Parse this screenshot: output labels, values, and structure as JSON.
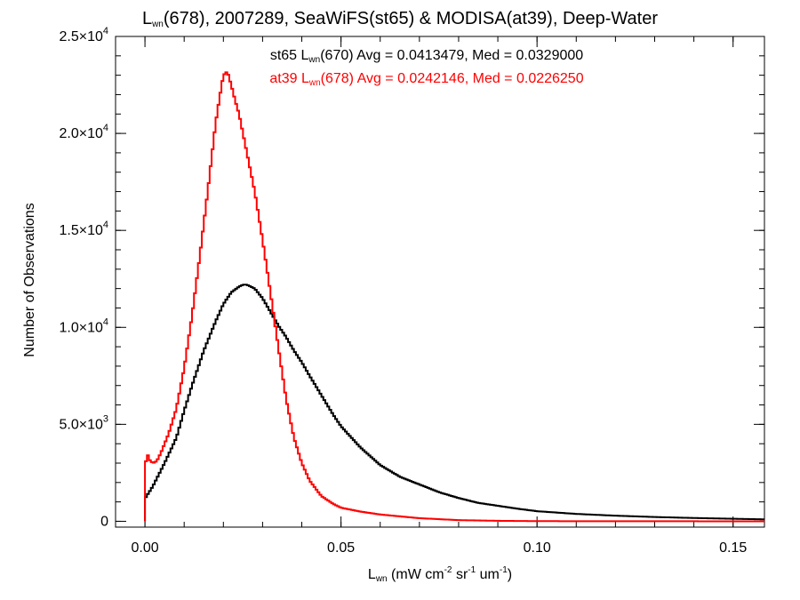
{
  "chart_data": {
    "type": "line",
    "title": {
      "main": "L",
      "sub": "wn",
      "rest": "(678), 2007289, SeaWiFS(st65) & MODISA(at39), Deep-Water"
    },
    "xlabel": {
      "main": "L",
      "sub": "wn",
      "p1": " (mW cm",
      "s1": "-2",
      "p2": " sr",
      "s2": "-1",
      "p3": " um",
      "s3": "-1",
      "p4": ")"
    },
    "ylabel": "Number of Observations",
    "xlim": [
      -0.0075,
      0.158
    ],
    "ylim": [
      -300,
      25000
    ],
    "x_ticks": [
      {
        "value": 0.0,
        "label": "0.00"
      },
      {
        "value": 0.05,
        "label": "0.05"
      },
      {
        "value": 0.1,
        "label": "0.10"
      },
      {
        "value": 0.15,
        "label": "0.15"
      }
    ],
    "y_ticks": [
      {
        "value": 0,
        "mant": "0",
        "exp": ""
      },
      {
        "value": 5000,
        "mant": "5.0×10",
        "exp": "3"
      },
      {
        "value": 10000,
        "mant": "1.0×10",
        "exp": "4"
      },
      {
        "value": 15000,
        "mant": "1.5×10",
        "exp": "4"
      },
      {
        "value": 20000,
        "mant": "2.0×10",
        "exp": "4"
      },
      {
        "value": 25000,
        "mant": "2.5×10",
        "exp": "4"
      }
    ],
    "x_minor_step": 0.01,
    "y_minor_step": 1000,
    "grid": false,
    "legend": [
      {
        "p1": "st65 L",
        "sub": "wn",
        "p2": "(670) Avg = 0.0413479, Med = 0.0329000",
        "color": "#000000"
      },
      {
        "p1": "at39 L",
        "sub": "wn",
        "p2": "(678) Avg = 0.0242146, Med = 0.0226250",
        "color": "#ff0000"
      }
    ],
    "series": [
      {
        "color": "#000000",
        "x": [
          0,
          0.0001,
          0.002,
          0.005,
          0.008,
          0.01,
          0.012,
          0.015,
          0.018,
          0.02,
          0.022,
          0.024,
          0.025,
          0.026,
          0.028,
          0.03,
          0.032,
          0.034,
          0.036,
          0.038,
          0.04,
          0.042,
          0.045,
          0.048,
          0.05,
          0.055,
          0.06,
          0.065,
          0.07,
          0.075,
          0.08,
          0.085,
          0.09,
          0.095,
          0.1,
          0.11,
          0.12,
          0.13,
          0.14,
          0.15,
          0.158
        ],
        "y": [
          0,
          1200,
          1800,
          3000,
          4300,
          5700,
          7000,
          8800,
          10300,
          11200,
          11800,
          12100,
          12200,
          12200,
          12000,
          11500,
          10800,
          10100,
          9500,
          8800,
          8200,
          7500,
          6500,
          5500,
          4900,
          3800,
          2900,
          2300,
          1900,
          1500,
          1200,
          950,
          800,
          650,
          520,
          380,
          290,
          220,
          170,
          130,
          100
        ]
      },
      {
        "color": "#ff0000",
        "x": [
          0,
          0.0002,
          0.0005,
          0.001,
          0.002,
          0.003,
          0.004,
          0.005,
          0.006,
          0.008,
          0.01,
          0.012,
          0.014,
          0.016,
          0.018,
          0.019,
          0.02,
          0.021,
          0.022,
          0.023,
          0.024,
          0.025,
          0.026,
          0.028,
          0.03,
          0.032,
          0.034,
          0.036,
          0.038,
          0.04,
          0.042,
          0.045,
          0.048,
          0.05,
          0.055,
          0.06,
          0.07,
          0.08,
          0.09,
          0.1,
          0.12,
          0.158
        ],
        "y": [
          0,
          3000,
          3600,
          3200,
          3000,
          3100,
          3500,
          4000,
          4500,
          5800,
          7900,
          10600,
          13700,
          17000,
          20500,
          21800,
          23000,
          23200,
          22500,
          21700,
          21000,
          20000,
          19000,
          17000,
          14500,
          11800,
          9000,
          6300,
          4300,
          3000,
          2100,
          1300,
          900,
          700,
          500,
          350,
          160,
          60,
          25,
          8,
          2,
          0
        ]
      }
    ]
  }
}
